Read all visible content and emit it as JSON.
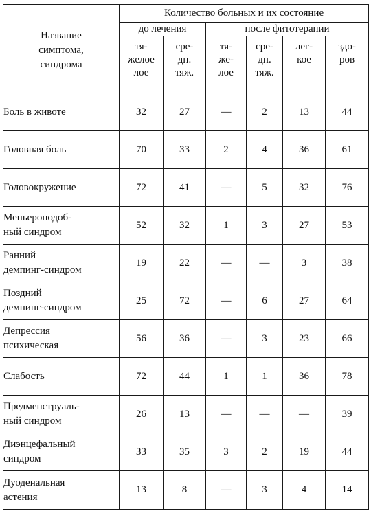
{
  "table": {
    "header": {
      "symptom_label": "Название\nсимптома,\nсиндрома",
      "group_title": "Количество больных и их состояние",
      "before_label": "до лечения",
      "after_label": "после фитотерапии",
      "subcolumns": [
        "тя-\nжелое\nлое",
        "сре-\nдн.\nтяж.",
        "тя-\nже-\nлое",
        "сре-\nдн.\nтяж.",
        "лег-\nкое",
        "здо-\nров"
      ]
    },
    "rows": [
      {
        "name": "Боль в животе",
        "values": [
          "32",
          "27",
          "—",
          "2",
          "13",
          "44"
        ]
      },
      {
        "name": "Головная боль",
        "values": [
          "70",
          "33",
          "2",
          "4",
          "36",
          "61"
        ]
      },
      {
        "name": "Головокружение",
        "values": [
          "72",
          "41",
          "—",
          "5",
          "32",
          "76"
        ]
      },
      {
        "name": "Меньероподоб-\nный синдром",
        "values": [
          "52",
          "32",
          "1",
          "3",
          "27",
          "53"
        ]
      },
      {
        "name": "Ранний\nдемпинг-синдром",
        "values": [
          "19",
          "22",
          "—",
          "—",
          "3",
          "38"
        ]
      },
      {
        "name": "Поздний\nдемпинг-синдром",
        "values": [
          "25",
          "72",
          "—",
          "6",
          "27",
          "64"
        ]
      },
      {
        "name": "Депрессия\nпсихическая",
        "values": [
          "56",
          "36",
          "—",
          "3",
          "23",
          "66"
        ]
      },
      {
        "name": "Слабость",
        "values": [
          "72",
          "44",
          "1",
          "1",
          "36",
          "78"
        ]
      },
      {
        "name": "Предменструаль-\nный синдром",
        "values": [
          "26",
          "13",
          "—",
          "—",
          "—",
          "39"
        ]
      },
      {
        "name": "Диэнцефальный\nсиндром",
        "values": [
          "33",
          "35",
          "3",
          "2",
          "19",
          "44"
        ]
      },
      {
        "name": "Дуоденальная\nастения",
        "values": [
          "13",
          "8",
          "—",
          "3",
          "4",
          "14"
        ]
      }
    ]
  }
}
